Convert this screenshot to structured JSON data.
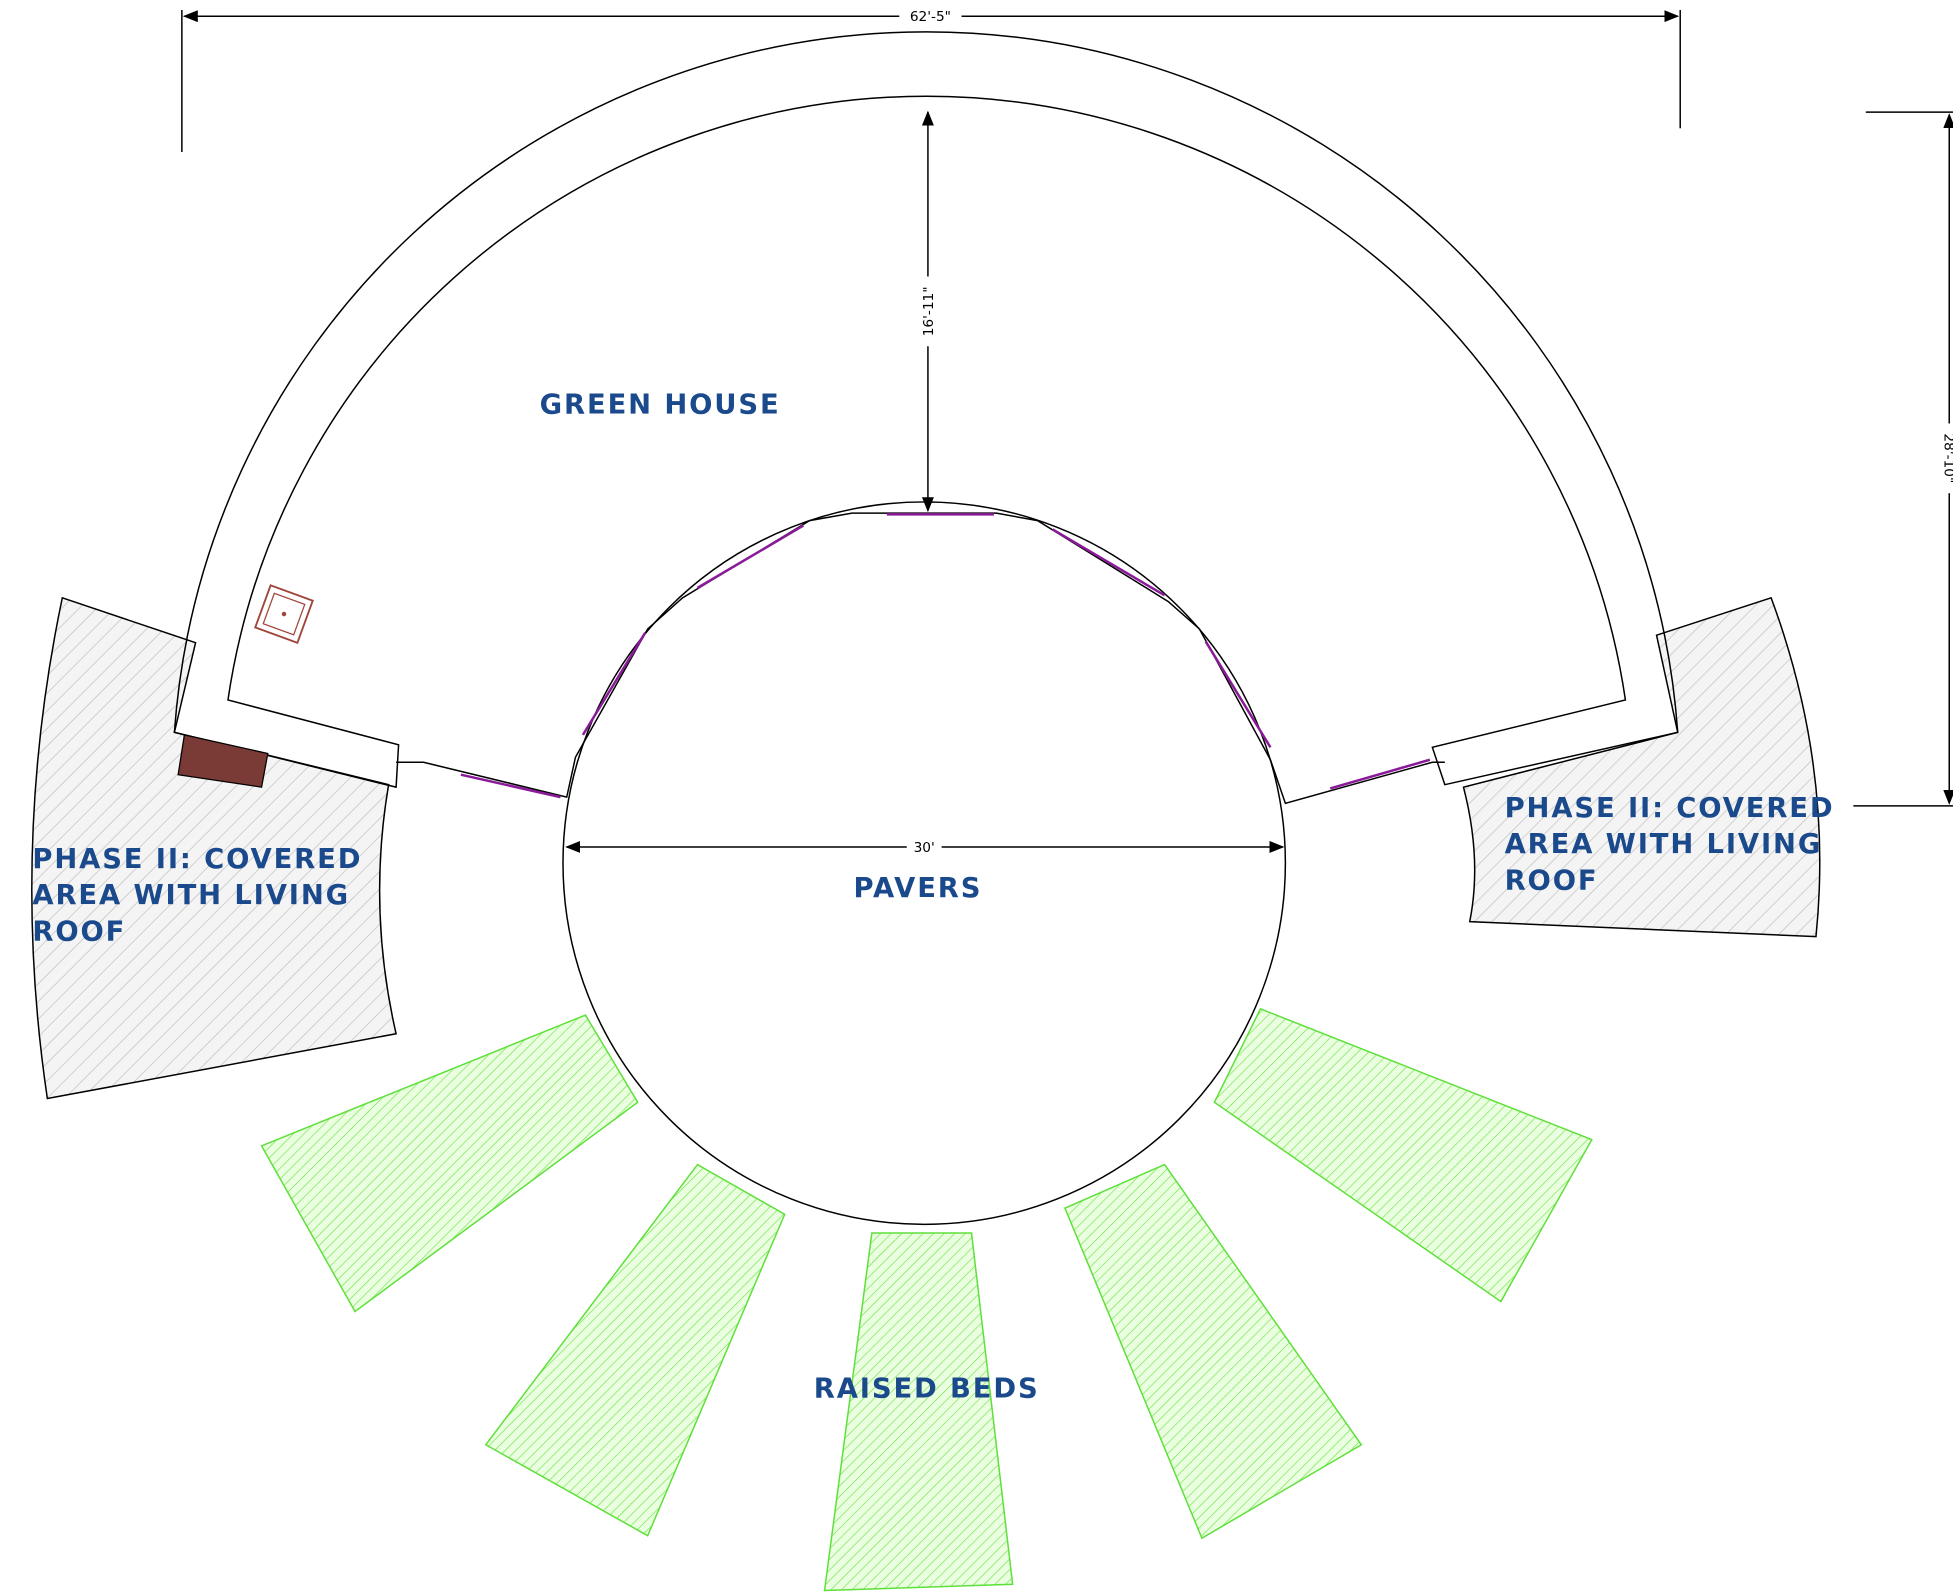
{
  "dimensions": {
    "overall_width": "62'-5\"",
    "greenhouse_depth": "16'-11\"",
    "overall_depth": "28'-10\"",
    "pavers_diameter": "30'"
  },
  "labels": {
    "greenhouse": "GREEN HOUSE",
    "pavers": "PAVERS",
    "raised_beds": "RAISED BEDS",
    "phase_left": [
      "PHASE II: COVERED",
      "AREA WITH LIVING",
      "ROOF"
    ],
    "phase_right": [
      "PHASE II: COVERED",
      "AREA WITH LIVING",
      "ROOF"
    ]
  }
}
